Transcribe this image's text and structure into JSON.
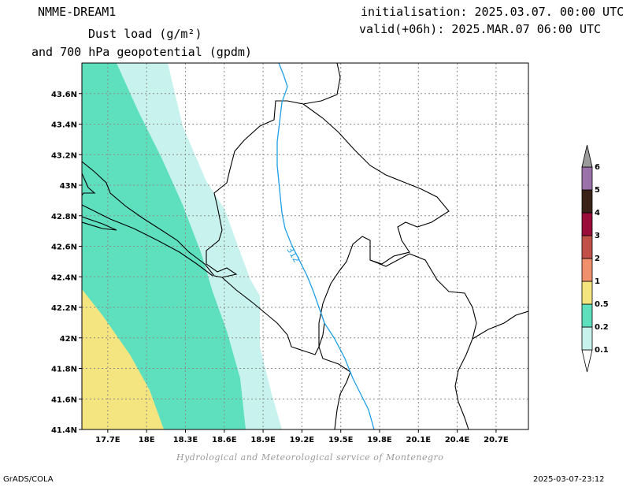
{
  "header": {
    "model": "NMME-DREAM1",
    "initialisation": "initialisation: 2025.03.07. 00:00 UTC",
    "valid": "valid(+06h): 2025.MAR.07 06:00 UTC",
    "title_line1": "Dust load (g/m²)",
    "title_line2": "and 700 hPa geopotential (gpdm)"
  },
  "map": {
    "lon_ticks": [
      "17.7E",
      "18E",
      "18.3E",
      "18.6E",
      "18.9E",
      "19.2E",
      "19.5E",
      "19.8E",
      "20.1E",
      "20.4E",
      "20.7E"
    ],
    "lat_ticks": [
      "43.6N",
      "43.4N",
      "43.2N",
      "43N",
      "42.8N",
      "42.6N",
      "42.4N",
      "42.2N",
      "42N",
      "41.8N",
      "41.6N",
      "41.4N"
    ],
    "lon_range": [
      17.5,
      20.95
    ],
    "lat_range": [
      41.4,
      43.8
    ],
    "contour_label": "312",
    "colors": {
      "dust_0_1": "#c8f2ee",
      "dust_0_2": "#5ee0bf",
      "dust_0_5": "#f5e580",
      "coastline": "#000000",
      "geopotential": "#1ea0e6",
      "grid": "#8c8c8c"
    }
  },
  "colorbar": {
    "labels": [
      "0.1",
      "0.2",
      "0.5",
      "1",
      "2",
      "3",
      "4",
      "5",
      "6"
    ],
    "colors": [
      "#c8f2ee",
      "#5ee0bf",
      "#f5e580",
      "#f0906c",
      "#c05048",
      "#9a0d3a",
      "#3a2218",
      "#9b71aa",
      "#9b9b9b"
    ]
  },
  "footer": {
    "credit": "Hydrological and Meteorological service of Montenegro",
    "software": "GrADS/COLA",
    "timestamp": "2025-03-07-23:12"
  }
}
